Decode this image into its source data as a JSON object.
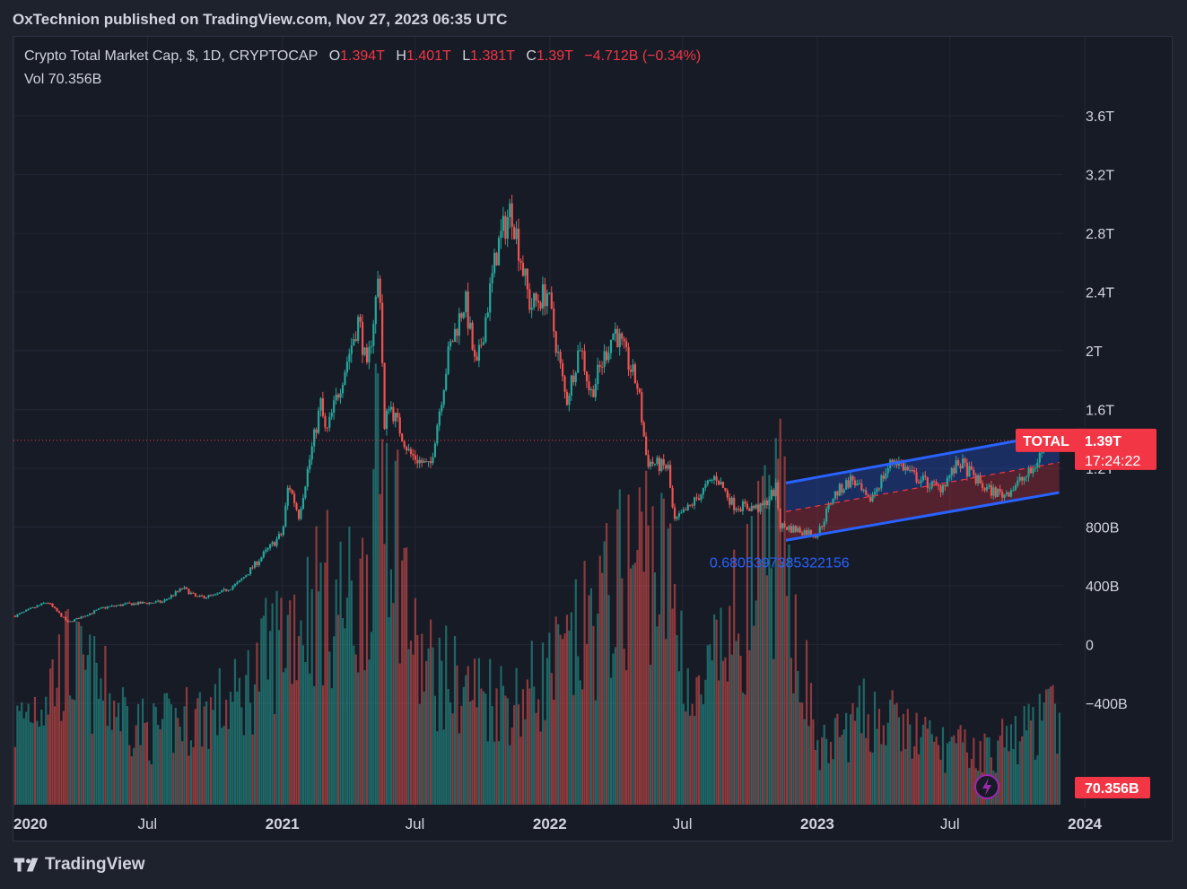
{
  "header": {
    "publisher_line": "OxTechnion published on TradingView.com, Nov 27, 2023 06:35 UTC"
  },
  "legend": {
    "instrument": "Crypto Total Market Cap, $, 1D, CRYPTOCAP",
    "open_label": "O",
    "open": "1.394T",
    "high_label": "H",
    "high": "1.401T",
    "low_label": "L",
    "low": "1.381T",
    "close_label": "C",
    "close": "1.39T",
    "change": "−4.712B (−0.34%)",
    "vol_label": "Vol",
    "vol": "70.356B"
  },
  "price_tag": {
    "symbol": "TOTAL",
    "price": "1.39T",
    "countdown": "17:24:22"
  },
  "volume_tag": "70.356B",
  "annotation": "0.6805397385322156",
  "footer": {
    "brand": "TradingView"
  },
  "colors": {
    "up": "#26a69a",
    "down": "#ef5350",
    "channel_line": "#2962ff",
    "tag": "#f23645",
    "background": "#171b26",
    "lightning": "#9c27b0"
  },
  "icons": {
    "lightning": "lightning-icon",
    "logo": "tradingview-logo-icon"
  },
  "chart_data": {
    "type": "candlestick",
    "title": "Crypto Total Market Cap",
    "interval": "1D",
    "y_ticks": [
      "3.6T",
      "3.2T",
      "2.8T",
      "2.4T",
      "2T",
      "1.6T",
      "1.2T",
      "800B",
      "400B",
      "0",
      "−400B"
    ],
    "y_tick_values": [
      3600,
      3200,
      2800,
      2400,
      2000,
      1600,
      1200,
      800,
      400,
      0,
      -400
    ],
    "y_unit": "B",
    "ylim": [
      -510,
      3790
    ],
    "x_ticks": [
      {
        "label": "2020",
        "date": "2020-01-01",
        "year": true
      },
      {
        "label": "Jul",
        "date": "2020-07-01",
        "year": false
      },
      {
        "label": "2021",
        "date": "2021-01-01",
        "year": true
      },
      {
        "label": "Jul",
        "date": "2021-07-01",
        "year": false
      },
      {
        "label": "2022",
        "date": "2022-01-01",
        "year": true
      },
      {
        "label": "Jul",
        "date": "2022-07-01",
        "year": false
      },
      {
        "label": "2023",
        "date": "2023-01-01",
        "year": true
      },
      {
        "label": "Jul",
        "date": "2023-07-01",
        "year": false
      },
      {
        "label": "2024",
        "date": "2024-01-01",
        "year": true
      }
    ],
    "xlim": [
      "2019-12-31",
      "2024-05-01"
    ],
    "price_path": [
      [
        "2020-01-01",
        195
      ],
      [
        "2020-02-14",
        290
      ],
      [
        "2020-03-13",
        150
      ],
      [
        "2020-04-30",
        250
      ],
      [
        "2020-06-01",
        275
      ],
      [
        "2020-07-20",
        290
      ],
      [
        "2020-08-17",
        385
      ],
      [
        "2020-09-05",
        320
      ],
      [
        "2020-10-01",
        335
      ],
      [
        "2020-11-01",
        420
      ],
      [
        "2020-12-31",
        760
      ],
      [
        "2021-01-08",
        1100
      ],
      [
        "2021-01-22",
        880
      ],
      [
        "2021-02-21",
        1640
      ],
      [
        "2021-02-28",
        1420
      ],
      [
        "2021-04-14",
        2220
      ],
      [
        "2021-04-25",
        1850
      ],
      [
        "2021-05-12",
        2550
      ],
      [
        "2021-05-19",
        1450
      ],
      [
        "2021-05-25",
        1650
      ],
      [
        "2021-06-22",
        1300
      ],
      [
        "2021-07-20",
        1200
      ],
      [
        "2021-08-15",
        2000
      ],
      [
        "2021-09-06",
        2350
      ],
      [
        "2021-09-21",
        1850
      ],
      [
        "2021-10-20",
        2700
      ],
      [
        "2021-11-08",
        2980
      ],
      [
        "2021-11-26",
        2500
      ],
      [
        "2021-12-04",
        2300
      ],
      [
        "2021-12-27",
        2400
      ],
      [
        "2022-01-22",
        1650
      ],
      [
        "2022-02-10",
        2050
      ],
      [
        "2022-02-24",
        1700
      ],
      [
        "2022-03-29",
        2150
      ],
      [
        "2022-04-30",
        1750
      ],
      [
        "2022-05-12",
        1250
      ],
      [
        "2022-06-10",
        1200
      ],
      [
        "2022-06-18",
        830
      ],
      [
        "2022-07-08",
        930
      ],
      [
        "2022-08-14",
        1150
      ],
      [
        "2022-09-07",
        950
      ],
      [
        "2022-10-15",
        925
      ],
      [
        "2022-11-05",
        1070
      ],
      [
        "2022-11-09",
        810
      ],
      [
        "2022-12-31",
        750
      ],
      [
        "2023-01-21",
        1010
      ],
      [
        "2023-02-16",
        1130
      ],
      [
        "2023-03-10",
        970
      ],
      [
        "2023-04-14",
        1270
      ],
      [
        "2023-05-10",
        1150
      ],
      [
        "2023-06-15",
        1060
      ],
      [
        "2023-07-13",
        1240
      ],
      [
        "2023-08-17",
        1060
      ],
      [
        "2023-09-11",
        1020
      ],
      [
        "2023-10-20",
        1180
      ],
      [
        "2023-11-10",
        1420
      ],
      [
        "2023-11-27",
        1390
      ]
    ],
    "last": {
      "open": 1394,
      "high": 1401,
      "low": 1381,
      "close": 1390,
      "volume": 70.356
    },
    "volume_path": [
      [
        "2020-01-01",
        60
      ],
      [
        "2020-03-13",
        110
      ],
      [
        "2020-07-01",
        55
      ],
      [
        "2020-11-01",
        80
      ],
      [
        "2021-01-10",
        140
      ],
      [
        "2021-02-20",
        160
      ],
      [
        "2021-04-15",
        150
      ],
      [
        "2021-05-19",
        280
      ],
      [
        "2021-07-01",
        110
      ],
      [
        "2021-09-01",
        90
      ],
      [
        "2021-11-15",
        80
      ],
      [
        "2022-01-22",
        110
      ],
      [
        "2022-05-12",
        200
      ],
      [
        "2022-06-18",
        160
      ],
      [
        "2022-07-15",
        70
      ],
      [
        "2022-11-09",
        210
      ],
      [
        "2023-01-01",
        40
      ],
      [
        "2023-03-10",
        70
      ],
      [
        "2023-06-15",
        45
      ],
      [
        "2023-08-17",
        40
      ],
      [
        "2023-11-10",
        65
      ],
      [
        "2023-11-27",
        70
      ]
    ],
    "channel": {
      "annotation": "0.6805397385322156",
      "start_date": "2022-11-19",
      "end_date": "2023-11-27",
      "upper": [
        1100,
        1440
      ],
      "middle": [
        905,
        1240
      ],
      "lower": [
        710,
        1035
      ]
    },
    "last_price_line": 1390
  }
}
